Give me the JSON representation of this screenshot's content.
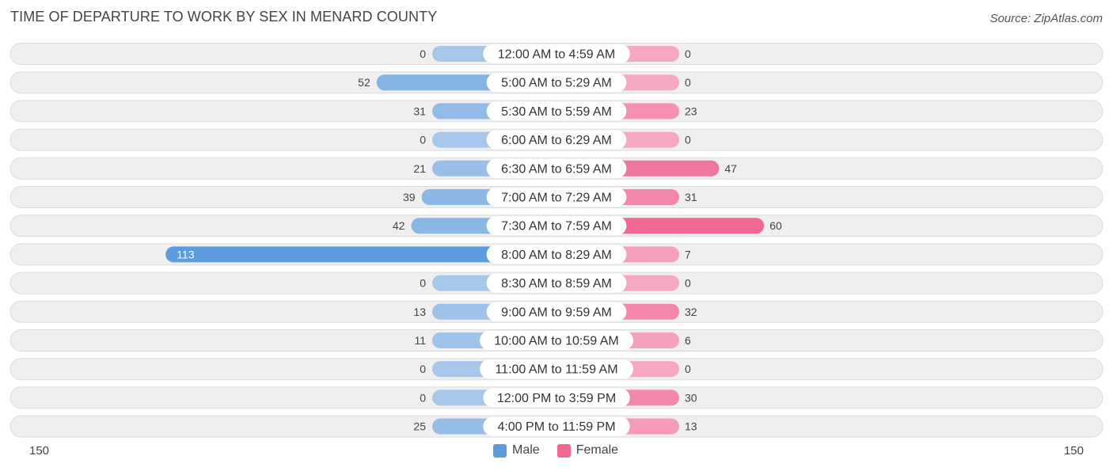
{
  "title": "TIME OF DEPARTURE TO WORK BY SEX IN MENARD COUNTY",
  "source": "Source: ZipAtlas.com",
  "colors": {
    "male_light": "#a7c7ea",
    "male_dark": "#5b9bde",
    "female_light": "#f6a8c3",
    "female_dark": "#f06892",
    "row_bg": "#efefef"
  },
  "chart_data": {
    "type": "bar",
    "orientation": "horizontal-diverging",
    "categories": [
      "12:00 AM to 4:59 AM",
      "5:00 AM to 5:29 AM",
      "5:30 AM to 5:59 AM",
      "6:00 AM to 6:29 AM",
      "6:30 AM to 6:59 AM",
      "7:00 AM to 7:29 AM",
      "7:30 AM to 7:59 AM",
      "8:00 AM to 8:29 AM",
      "8:30 AM to 8:59 AM",
      "9:00 AM to 9:59 AM",
      "10:00 AM to 10:59 AM",
      "11:00 AM to 11:59 AM",
      "12:00 PM to 3:59 PM",
      "4:00 PM to 11:59 PM"
    ],
    "series": [
      {
        "name": "Male",
        "values": [
          0,
          52,
          31,
          0,
          21,
          39,
          42,
          113,
          0,
          13,
          11,
          0,
          0,
          25
        ]
      },
      {
        "name": "Female",
        "values": [
          0,
          0,
          23,
          0,
          47,
          31,
          60,
          7,
          0,
          32,
          6,
          0,
          30,
          13
        ]
      }
    ],
    "axis_range": [
      -150,
      150
    ],
    "axis_labels": {
      "left": "150",
      "right": "150"
    },
    "legend_position": "bottom-center"
  }
}
